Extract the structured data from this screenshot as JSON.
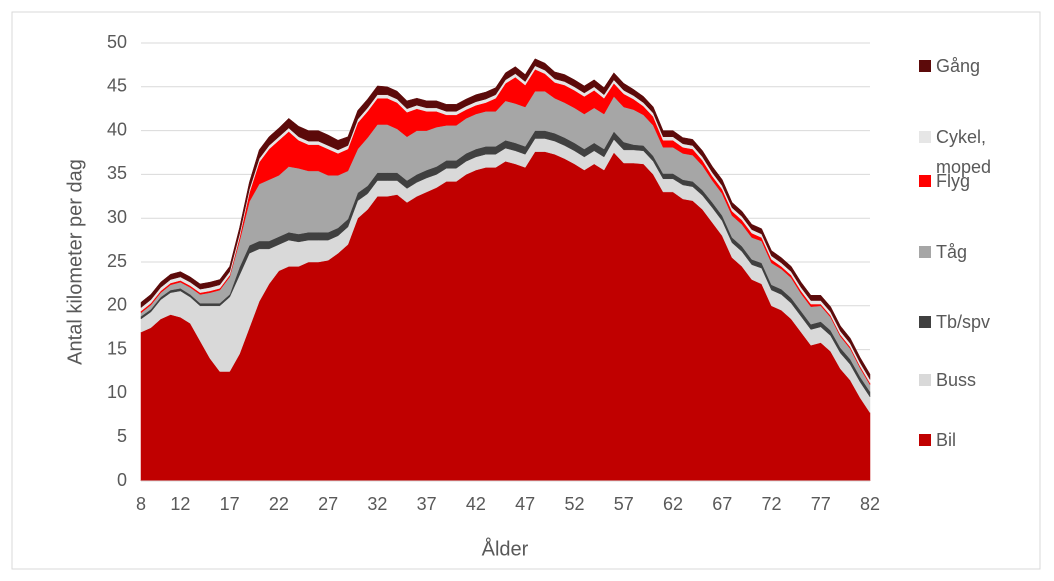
{
  "chart_data": {
    "type": "stacked_area",
    "x_label": "Ålder",
    "y_label": "Antal kilometer per dag",
    "categories": [
      8,
      null,
      null,
      null,
      12,
      null,
      null,
      null,
      null,
      17,
      null,
      null,
      null,
      null,
      22,
      null,
      null,
      null,
      null,
      27,
      null,
      null,
      null,
      null,
      32,
      null,
      null,
      null,
      null,
      37,
      null,
      null,
      null,
      null,
      42,
      null,
      null,
      null,
      null,
      47,
      null,
      null,
      null,
      null,
      52,
      null,
      null,
      null,
      null,
      57,
      null,
      null,
      null,
      null,
      62,
      null,
      null,
      null,
      null,
      67,
      null,
      null,
      null,
      null,
      72,
      null,
      null,
      null,
      null,
      77,
      null,
      null,
      null,
      null,
      82
    ],
    "ylim": [
      0,
      50
    ],
    "yticks": [
      0,
      5,
      10,
      15,
      20,
      25,
      30,
      35,
      40,
      45,
      50
    ],
    "grid": true,
    "series": [
      {
        "name": "Bil",
        "color": "#c00000",
        "values": [
          17,
          17.5,
          18.5,
          19,
          18.7,
          18,
          16,
          14,
          12.5,
          12.5,
          14.5,
          17.5,
          20.5,
          22.5,
          24,
          24.5,
          24.5,
          25,
          25,
          25.2,
          26,
          27,
          30,
          31,
          32.5,
          32.5,
          32.7,
          31.8,
          32.5,
          33,
          33.5,
          34.2,
          34.2,
          35,
          35.5,
          35.8,
          35.8,
          36.5,
          36.2,
          35.8,
          37.6,
          37.6,
          37.3,
          36.8,
          36.2,
          35.5,
          36.2,
          35.5,
          37.5,
          36.3,
          36.3,
          36.2,
          35,
          33,
          33,
          32.2,
          32,
          31,
          29.5,
          28,
          25.5,
          24.5,
          23,
          22.5,
          20,
          19.5,
          18.5,
          17,
          15.5,
          15.8,
          14.8,
          12.8,
          11.5,
          9.5,
          7.8
        ]
      },
      {
        "name": "Buss",
        "color": "#d9d9d9",
        "values": [
          1.5,
          1.8,
          2.2,
          2.5,
          3,
          3,
          4,
          6,
          7.5,
          8.5,
          9,
          8.5,
          6,
          4,
          3,
          3,
          2.8,
          2.5,
          2.5,
          2.3,
          2,
          2,
          2,
          1.8,
          1.8,
          1.8,
          1.6,
          1.6,
          1.6,
          1.6,
          1.5,
          1.5,
          1.5,
          1.5,
          1.5,
          1.5,
          1.5,
          1.5,
          1.5,
          1.5,
          1.5,
          1.5,
          1.5,
          1.5,
          1.5,
          1.5,
          1.5,
          1.5,
          1.5,
          1.5,
          1.5,
          1.5,
          1.5,
          1.5,
          1.5,
          1.6,
          1.6,
          1.6,
          1.7,
          1.7,
          1.7,
          1.7,
          1.7,
          1.8,
          1.8,
          1.8,
          1.8,
          1.8,
          1.8,
          1.8,
          1.8,
          1.8,
          1.8,
          1.8,
          1.8
        ]
      },
      {
        "name": "Tb/spv",
        "color": "#404040",
        "values": [
          0.3,
          0.3,
          0.3,
          0.3,
          0.3,
          0.3,
          0.3,
          0.3,
          0.3,
          0.3,
          0.9,
          0.9,
          0.9,
          0.9,
          0.9,
          0.9,
          0.9,
          0.9,
          0.9,
          0.9,
          0.9,
          0.9,
          0.9,
          0.9,
          0.9,
          0.9,
          0.9,
          0.9,
          0.9,
          0.9,
          0.9,
          0.9,
          0.9,
          0.9,
          0.9,
          0.9,
          0.9,
          0.9,
          0.9,
          0.9,
          0.9,
          0.9,
          0.9,
          0.9,
          0.9,
          0.9,
          0.9,
          0.9,
          0.9,
          0.9,
          0.6,
          0.6,
          0.6,
          0.6,
          0.6,
          0.6,
          0.6,
          0.6,
          0.6,
          0.6,
          0.6,
          0.6,
          0.6,
          0.6,
          0.6,
          0.6,
          0.6,
          0.6,
          0.6,
          0.6,
          0.6,
          0.6,
          0.6,
          0.6,
          0.6
        ]
      },
      {
        "name": "Tåg",
        "color": "#a6a6a6",
        "values": [
          0.4,
          0.5,
          0.5,
          0.6,
          0.7,
          0.8,
          1,
          1.2,
          1.5,
          2,
          3,
          5,
          6.5,
          7,
          7,
          7.5,
          7.5,
          7,
          7,
          6.5,
          6,
          5.5,
          5,
          5.5,
          5.5,
          5.5,
          5,
          5,
          5,
          4.5,
          4.5,
          4,
          4,
          4,
          4,
          4,
          4,
          4.5,
          4.5,
          4.5,
          4.5,
          4.5,
          4,
          4,
          4,
          4,
          4,
          4,
          4,
          4,
          4,
          3.5,
          3.5,
          3,
          3,
          3,
          3,
          2.8,
          2.5,
          2.5,
          2.5,
          2.5,
          2.5,
          2.5,
          2.5,
          2.3,
          2.3,
          2,
          2,
          1.8,
          1.5,
          1.3,
          1.2,
          1,
          0.8
        ]
      },
      {
        "name": "Flyg",
        "color": "#ff0000",
        "values": [
          0.2,
          0.2,
          0.2,
          0.2,
          0.2,
          0.2,
          0.2,
          0.2,
          0.2,
          0.2,
          0.4,
          1,
          2.5,
          3.5,
          4,
          4,
          3.2,
          3,
          3,
          3,
          2.5,
          2.5,
          3,
          3,
          3,
          3,
          3,
          2.8,
          2.5,
          2.2,
          1.8,
          1.2,
          1.2,
          1,
          1,
          1,
          1.5,
          2,
          3,
          2.5,
          2.5,
          2,
          1.8,
          2,
          2,
          2,
          2,
          1.8,
          1.5,
          1.5,
          1.2,
          1,
          1,
          0.8,
          0.8,
          0.7,
          0.7,
          0.6,
          0.5,
          0.5,
          0.5,
          0.5,
          0.5,
          0.4,
          0.4,
          0.3,
          0.3,
          0.3,
          0.3,
          0.2,
          0.2,
          0.2,
          0.2,
          0.2,
          0.2
        ]
      },
      {
        "name": "Cykel, moped",
        "color": "#e6e6e6",
        "values": [
          0.4,
          0.4,
          0.4,
          0.4,
          0.4,
          0.4,
          0.4,
          0.4,
          0.4,
          0.4,
          0.4,
          0.4,
          0.4,
          0.4,
          0.4,
          0.4,
          0.4,
          0.4,
          0.4,
          0.4,
          0.4,
          0.4,
          0.4,
          0.4,
          0.4,
          0.4,
          0.4,
          0.4,
          0.4,
          0.4,
          0.4,
          0.4,
          0.4,
          0.4,
          0.4,
          0.4,
          0.4,
          0.4,
          0.4,
          0.4,
          0.4,
          0.4,
          0.4,
          0.4,
          0.4,
          0.4,
          0.4,
          0.4,
          0.4,
          0.4,
          0.4,
          0.4,
          0.4,
          0.4,
          0.4,
          0.4,
          0.4,
          0.4,
          0.4,
          0.4,
          0.4,
          0.4,
          0.4,
          0.4,
          0.4,
          0.4,
          0.4,
          0.4,
          0.4,
          0.4,
          0.4,
          0.4,
          0.4,
          0.4,
          0.4
        ]
      },
      {
        "name": "Gång",
        "color": "#5c0a0a",
        "values": [
          0.6,
          0.6,
          0.6,
          0.6,
          0.6,
          0.6,
          0.6,
          0.6,
          0.6,
          0.6,
          0.7,
          0.8,
          1,
          1,
          1,
          1.1,
          1.2,
          1.2,
          1.2,
          1.2,
          1.1,
          1,
          1,
          1,
          1,
          0.9,
          0.9,
          0.9,
          0.8,
          0.8,
          0.8,
          0.8,
          0.8,
          0.8,
          0.8,
          0.8,
          0.8,
          0.8,
          0.8,
          0.8,
          0.8,
          0.8,
          0.8,
          0.8,
          0.8,
          0.8,
          0.8,
          0.8,
          0.8,
          0.8,
          0.7,
          0.7,
          0.7,
          0.7,
          0.7,
          0.7,
          0.7,
          0.7,
          0.7,
          0.7,
          0.6,
          0.6,
          0.6,
          0.6,
          0.6,
          0.6,
          0.6,
          0.6,
          0.6,
          0.6,
          0.6,
          0.6,
          0.6,
          0.6,
          0.6
        ]
      }
    ]
  }
}
